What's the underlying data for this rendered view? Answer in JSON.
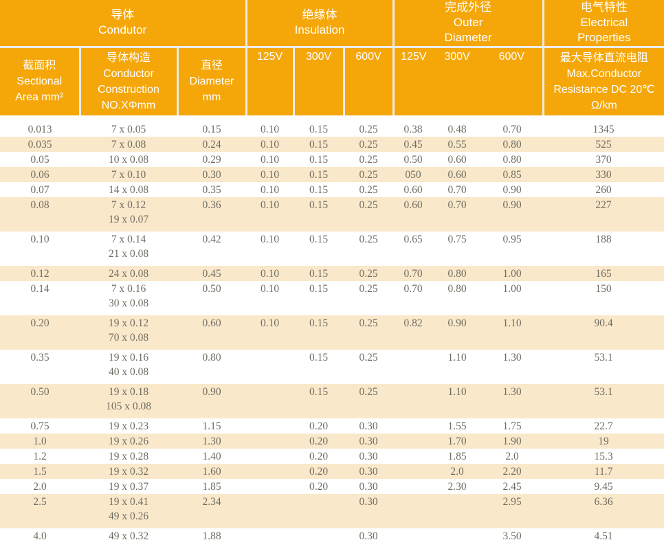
{
  "colors": {
    "header_orange": "#F5A70A",
    "stripe_cream": "#FAE8CA",
    "header_text": "#FFFFFF",
    "data_text": "#6E6D62",
    "divider": "#ECECEC"
  },
  "table": {
    "groups": {
      "conductor": [
        "导体",
        "Condutor"
      ],
      "insulation": [
        "绝缘体",
        "Insulation"
      ],
      "outer": [
        "完成外径",
        "Outer",
        "Diameter"
      ],
      "electrical": [
        "电气特性",
        "Electrical",
        "Properties"
      ]
    },
    "subheaders": {
      "sectional": [
        "截面积",
        "Sectional",
        "Area mm²"
      ],
      "construction": [
        "导体构造",
        "Conductor",
        "Construction",
        "NO.XΦmm"
      ],
      "diameter": [
        "直径",
        "Diameter",
        "mm"
      ],
      "resistance": [
        "最大导体直流电阻",
        "Max.Conductor",
        "Resistance DC 20℃",
        "Ω/km"
      ]
    },
    "voltage_labels": [
      "125V",
      "300V",
      "600V"
    ],
    "rows": [
      {
        "sect": "0.013",
        "construction": [
          "7 x 0.05"
        ],
        "dia": "0.15",
        "ins": [
          "0.10",
          "0.15",
          "0.25"
        ],
        "od": [
          "0.38",
          "0.48",
          "0.70"
        ],
        "res": "1345"
      },
      {
        "sect": "0.035",
        "construction": [
          "7 x 0.08"
        ],
        "dia": "0.24",
        "ins": [
          "0.10",
          "0.15",
          "0.25"
        ],
        "od": [
          "0.45",
          "0.55",
          "0.80"
        ],
        "res": "525"
      },
      {
        "sect": "0.05",
        "construction": [
          "10 x 0.08"
        ],
        "dia": "0.29",
        "ins": [
          "0.10",
          "0.15",
          "0.25"
        ],
        "od": [
          "0.50",
          "0.60",
          "0.80"
        ],
        "res": "370"
      },
      {
        "sect": "0.06",
        "construction": [
          "7 x 0.10"
        ],
        "dia": "0.30",
        "ins": [
          "0.10",
          "0.15",
          "0.25"
        ],
        "od": [
          "050",
          "0.60",
          "0.85"
        ],
        "res": "330"
      },
      {
        "sect": "0.07",
        "construction": [
          "14 x 0.08"
        ],
        "dia": "0.35",
        "ins": [
          "0.10",
          "0.15",
          "0.25"
        ],
        "od": [
          "0.60",
          "0.70",
          "0.90"
        ],
        "res": "260"
      },
      {
        "sect": "0.08",
        "construction": [
          "7 x 0.12",
          "19 x 0.07"
        ],
        "dia": "0.36",
        "ins": [
          "0.10",
          "0.15",
          "0.25"
        ],
        "od": [
          "0.60",
          "0.70",
          "0.90"
        ],
        "res": "227"
      },
      {
        "sect": "0.10",
        "construction": [
          "7 x 0.14",
          "21 x 0.08"
        ],
        "dia": "0.42",
        "ins": [
          "0.10",
          "0.15",
          "0.25"
        ],
        "od": [
          "0.65",
          "0.75",
          "0.95"
        ],
        "res": "188"
      },
      {
        "sect": "0.12",
        "construction": [
          "24 x 0.08"
        ],
        "dia": "0.45",
        "ins": [
          "0.10",
          "0.15",
          "0.25"
        ],
        "od": [
          "0.70",
          "0.80",
          "1.00"
        ],
        "res": "165"
      },
      {
        "sect": "0.14",
        "construction": [
          "7 x 0.16",
          "30 x 0.08"
        ],
        "dia": "0.50",
        "ins": [
          "0.10",
          "0.15",
          "0.25"
        ],
        "od": [
          "0.70",
          "0.80",
          "1.00"
        ],
        "res": "150"
      },
      {
        "sect": "0.20",
        "construction": [
          "19 x 0.12",
          "70 x 0.08"
        ],
        "dia": "0.60",
        "ins": [
          "0.10",
          "0.15",
          "0.25"
        ],
        "od": [
          "0.82",
          "0.90",
          "1.10"
        ],
        "res": "90.4"
      },
      {
        "sect": "0.35",
        "construction": [
          "19 x 0.16",
          "40 x 0.08"
        ],
        "dia": "0.80",
        "ins": [
          "",
          "0.15",
          "0.25"
        ],
        "od": [
          "",
          "1.10",
          "1.30"
        ],
        "res": "53.1"
      },
      {
        "sect": "0.50",
        "construction": [
          "19 x 0.18",
          "105 x 0.08"
        ],
        "dia": "0.90",
        "ins": [
          "",
          "0.15",
          "0.25"
        ],
        "od": [
          "",
          "1.10",
          "1.30"
        ],
        "res": "53.1"
      },
      {
        "sect": "0.75",
        "construction": [
          "19 x 0.23"
        ],
        "dia": "1.15",
        "ins": [
          "",
          "0.20",
          "0.30"
        ],
        "od": [
          "",
          "1.55",
          "1.75"
        ],
        "res": "22.7"
      },
      {
        "sect": "1.0",
        "construction": [
          "19 x 0.26"
        ],
        "dia": "1.30",
        "ins": [
          "",
          "0.20",
          "0.30"
        ],
        "od": [
          "",
          "1.70",
          "1.90"
        ],
        "res": "19"
      },
      {
        "sect": "1.2",
        "construction": [
          "19 x 0.28"
        ],
        "dia": "1.40",
        "ins": [
          "",
          "0.20",
          "0.30"
        ],
        "od": [
          "",
          "1.85",
          "2.0"
        ],
        "res": "15.3"
      },
      {
        "sect": "1.5",
        "construction": [
          "19 x 0.32"
        ],
        "dia": "1.60",
        "ins": [
          "",
          "0.20",
          "0.30"
        ],
        "od": [
          "",
          "2.0",
          "2.20"
        ],
        "res": "11.7"
      },
      {
        "sect": "2.0",
        "construction": [
          "19 x 0.37"
        ],
        "dia": "1.85",
        "ins": [
          "",
          "0.20",
          "0.30"
        ],
        "od": [
          "",
          "2.30",
          "2.45"
        ],
        "res": "9.45"
      },
      {
        "sect": "2.5",
        "construction": [
          "19 x 0.41",
          "49 x 0.26"
        ],
        "dia": "2.34",
        "ins": [
          "",
          "",
          "0.30"
        ],
        "od": [
          "",
          "",
          "2.95"
        ],
        "res": "6.36"
      },
      {
        "sect": "4.0",
        "construction": [
          "49 x 0.32"
        ],
        "dia": "1.88",
        "ins": [
          "",
          "",
          "0.30"
        ],
        "od": [
          "",
          "",
          "3.50"
        ],
        "res": "4.51"
      }
    ]
  }
}
